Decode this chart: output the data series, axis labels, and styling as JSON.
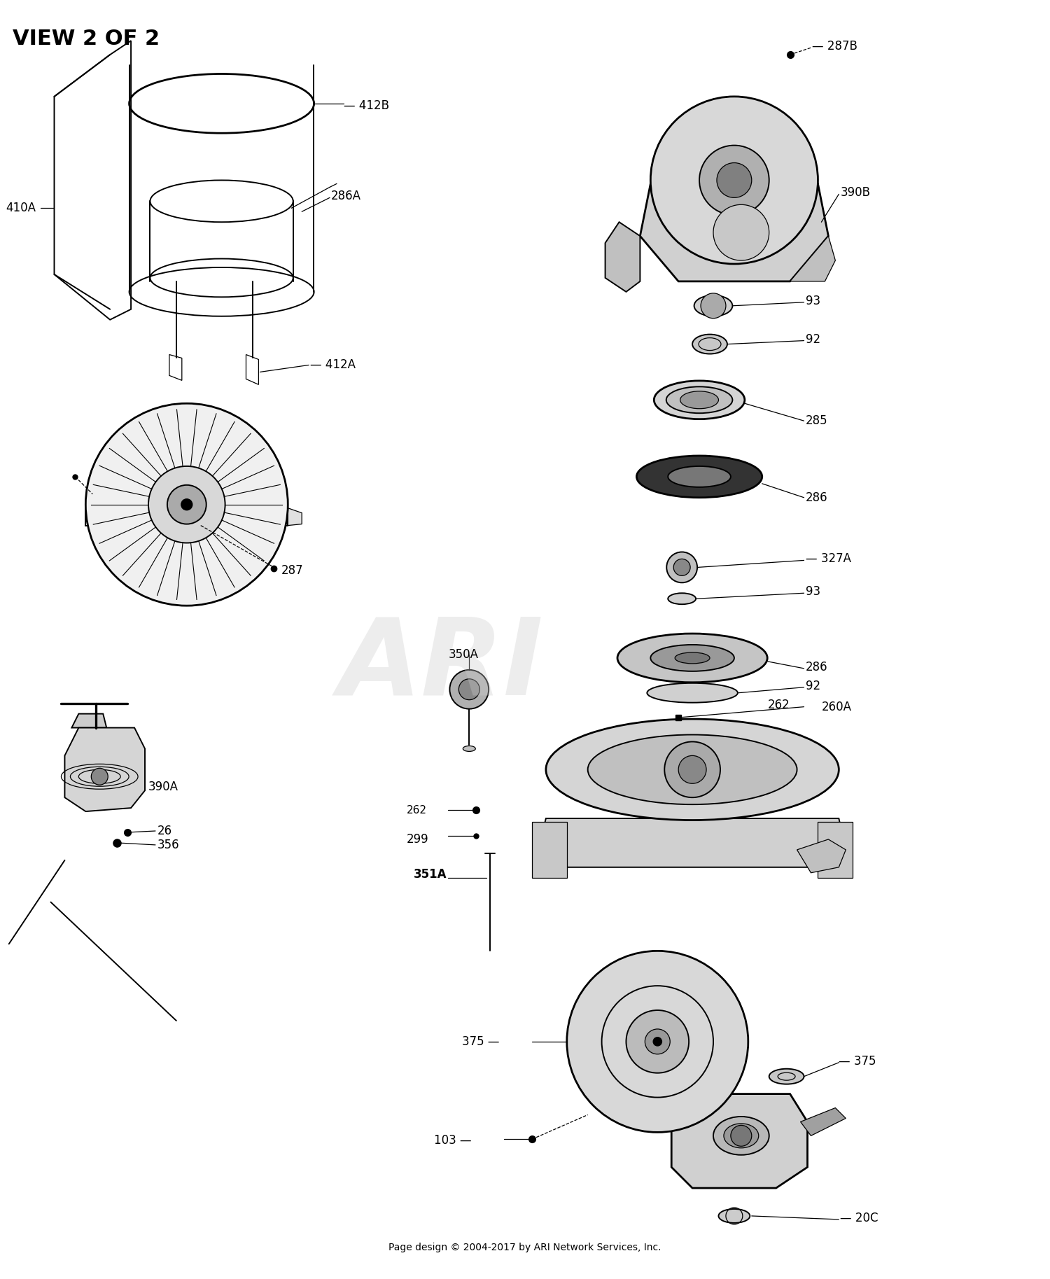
{
  "title": "VIEW 2 OF 2",
  "footer": "Page design © 2004-2017 by ARI Network Services, Inc.",
  "bg": "#ffffff",
  "watermark": "ARI",
  "lw_thick": 2.0,
  "lw_med": 1.4,
  "lw_thin": 0.9
}
